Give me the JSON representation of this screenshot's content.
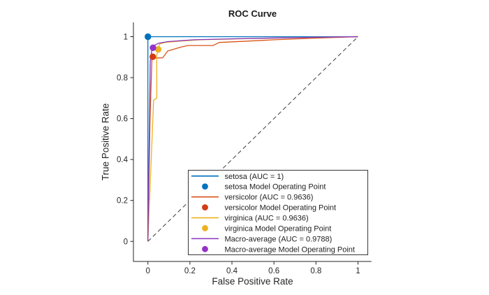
{
  "window": {
    "background": "#ffffff"
  },
  "chart_data": {
    "type": "line",
    "title": "ROC Curve",
    "xlabel": "False Positive Rate",
    "ylabel": "True Positive Rate",
    "xticks": [
      0,
      0.2,
      0.4,
      0.6,
      0.8,
      1
    ],
    "yticks": [
      0,
      0.2,
      0.4,
      0.6,
      0.8,
      1
    ],
    "xlim": [
      -0.069,
      1.064
    ],
    "ylim": [
      -0.098,
      1.07
    ],
    "grid": false,
    "axis_color": "#262626",
    "text_color": "#262626",
    "legend": {
      "position": "inside-bottom-right",
      "border_color": "#383838",
      "background": "#ffffff"
    },
    "reference_line": {
      "name": "chance-diagonal",
      "style": "dashed",
      "color": "#4d4d4d",
      "points": [
        [
          0,
          0
        ],
        [
          1,
          1
        ]
      ]
    },
    "series": [
      {
        "name": "setosa",
        "legend_label": "setosa (AUC = 1)",
        "auc": 1,
        "type": "line",
        "color": "#0072BD",
        "points": [
          [
            0,
            0
          ],
          [
            0,
            1
          ],
          [
            1,
            1
          ]
        ]
      },
      {
        "name": "setosa-operating-point",
        "legend_label": "setosa Model Operating Point",
        "type": "scatter",
        "color": "#0072BD",
        "points": [
          [
            0,
            1
          ]
        ]
      },
      {
        "name": "versicolor",
        "legend_label": "versicolor (AUC = 0.9636)",
        "auc": 0.9636,
        "type": "line",
        "color": "#D95319",
        "points": [
          [
            0,
            0
          ],
          [
            0.01,
            0.6
          ],
          [
            0.019,
            0.895
          ],
          [
            0.07,
            0.897
          ],
          [
            0.094,
            0.93
          ],
          [
            0.16,
            0.95
          ],
          [
            0.19,
            0.957
          ],
          [
            0.31,
            0.957
          ],
          [
            0.34,
            0.972
          ],
          [
            0.45,
            0.977
          ],
          [
            0.6,
            0.985
          ],
          [
            0.8,
            0.993
          ],
          [
            1,
            1
          ]
        ]
      },
      {
        "name": "versicolor-operating-point",
        "legend_label": "versicolor Model Operating Point",
        "type": "scatter",
        "color": "#D23B15",
        "points": [
          [
            0.023,
            0.902
          ]
        ]
      },
      {
        "name": "virginica",
        "legend_label": "virginica (AUC = 0.9636)",
        "auc": 0.9636,
        "type": "line",
        "color": "#EDB120",
        "points": [
          [
            0,
            0
          ],
          [
            0.027,
            0.69
          ],
          [
            0.042,
            0.7
          ],
          [
            0.042,
            0.91
          ],
          [
            0.05,
            0.937
          ],
          [
            0.055,
            0.964
          ],
          [
            0.08,
            0.972
          ],
          [
            0.15,
            0.978
          ],
          [
            0.25,
            0.985
          ],
          [
            0.5,
            0.991
          ],
          [
            0.75,
            0.996
          ],
          [
            1,
            1
          ]
        ]
      },
      {
        "name": "virginica-operating-point",
        "legend_label": "virginica Model Operating Point",
        "type": "scatter",
        "color": "#EDB120",
        "points": [
          [
            0.049,
            0.938
          ]
        ]
      },
      {
        "name": "Macro-average",
        "legend_label": "Macro-average (AUC = 0.9788)",
        "auc": 0.9788,
        "type": "line",
        "color": "#8833BB",
        "points": [
          [
            0,
            0
          ],
          [
            0.011,
            0.88
          ],
          [
            0.018,
            0.93
          ],
          [
            0.025,
            0.948
          ],
          [
            0.03,
            0.958
          ],
          [
            0.05,
            0.968
          ],
          [
            0.095,
            0.976
          ],
          [
            0.22,
            0.985
          ],
          [
            0.46,
            0.991
          ],
          [
            0.8,
            0.997
          ],
          [
            1,
            1
          ]
        ]
      },
      {
        "name": "Macro-average-operating-point",
        "legend_label": "Macro-average Model Operating Point",
        "type": "scatter",
        "color": "#9632C8",
        "points": [
          [
            0.024,
            0.946
          ]
        ]
      }
    ]
  }
}
